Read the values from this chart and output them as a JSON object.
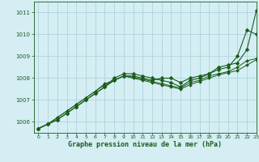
{
  "title": "Graphe pression niveau de la mer (hPa)",
  "background_color": "#d4eef4",
  "grid_color": "#aacdd8",
  "line_color": "#1a5c1a",
  "xlim": [
    -0.5,
    23
  ],
  "ylim": [
    1005.5,
    1011.5
  ],
  "yticks": [
    1006,
    1007,
    1008,
    1009,
    1010,
    1011
  ],
  "xticks": [
    0,
    1,
    2,
    3,
    4,
    5,
    6,
    7,
    8,
    9,
    10,
    11,
    12,
    13,
    14,
    15,
    16,
    17,
    18,
    19,
    20,
    21,
    22,
    23
  ],
  "series": [
    [
      1005.7,
      1005.9,
      1006.1,
      1006.4,
      1006.7,
      1007.0,
      1007.3,
      1007.6,
      1007.9,
      1008.1,
      1008.1,
      1008.0,
      1007.9,
      1008.0,
      1008.0,
      1007.8,
      1008.0,
      1008.1,
      1008.2,
      1008.5,
      1008.6,
      1008.7,
      1009.3,
      1011.1
    ],
    [
      1005.7,
      1005.9,
      1006.1,
      1006.4,
      1006.7,
      1007.0,
      1007.3,
      1007.6,
      1008.0,
      1008.2,
      1008.2,
      1008.1,
      1008.0,
      1007.9,
      1007.8,
      1007.6,
      1007.9,
      1008.0,
      1008.2,
      1008.4,
      1008.5,
      1009.0,
      1010.2,
      1010.0
    ],
    [
      1005.7,
      1005.9,
      1006.2,
      1006.5,
      1006.8,
      1007.1,
      1007.4,
      1007.75,
      1007.9,
      1008.1,
      1008.05,
      1007.95,
      1007.85,
      1007.75,
      1007.65,
      1007.55,
      1007.8,
      1007.9,
      1008.1,
      1008.2,
      1008.3,
      1008.5,
      1008.8,
      1008.9
    ],
    [
      1005.7,
      1005.9,
      1006.2,
      1006.5,
      1006.8,
      1007.1,
      1007.4,
      1007.7,
      1007.9,
      1008.1,
      1008.0,
      1007.9,
      1007.8,
      1007.7,
      1007.6,
      1007.5,
      1007.7,
      1007.85,
      1008.0,
      1008.15,
      1008.25,
      1008.35,
      1008.6,
      1008.85
    ]
  ]
}
